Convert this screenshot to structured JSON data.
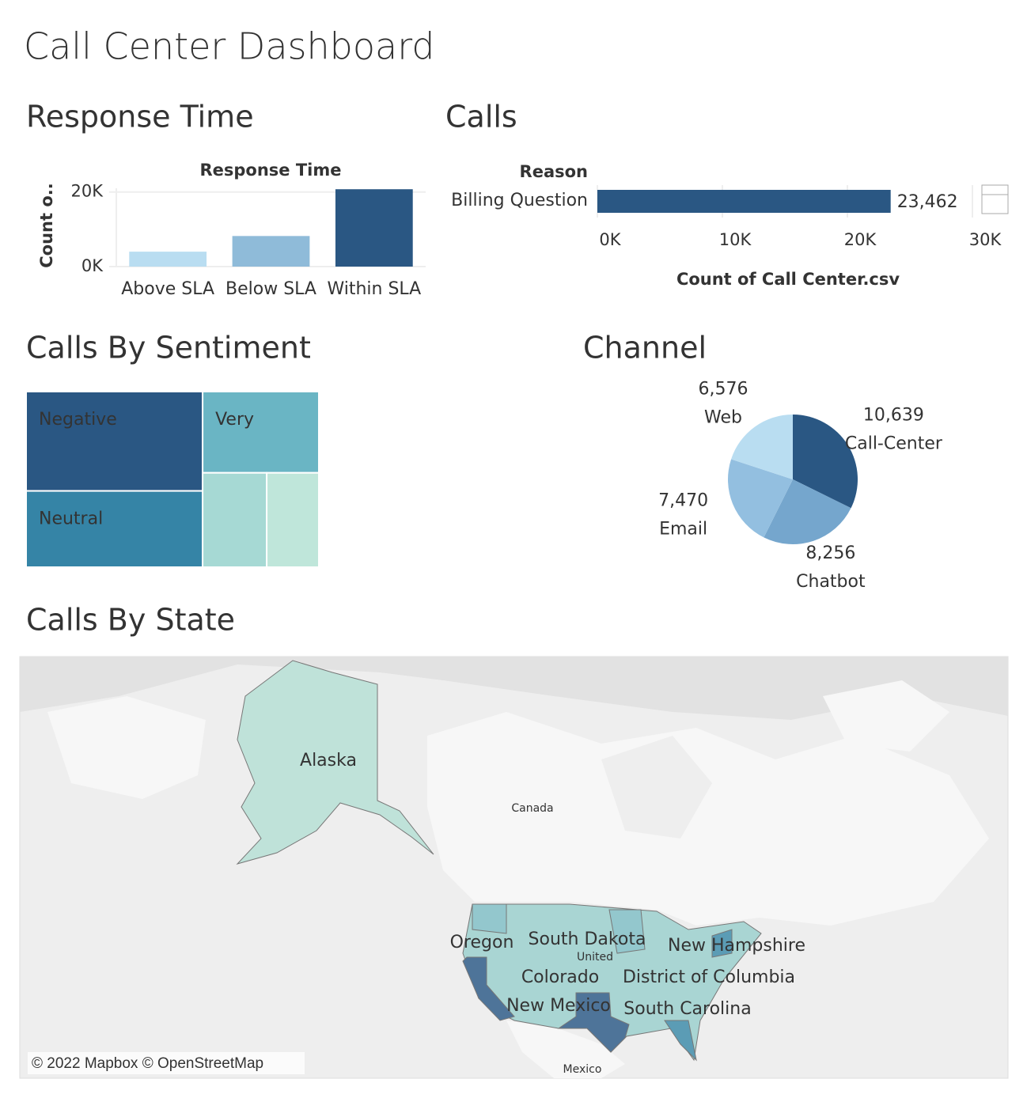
{
  "title": "Call Center Dashboard",
  "chart_data": [
    {
      "type": "bar",
      "title": "Response Time",
      "subtitle": "Response Time",
      "y_label": "Count o..",
      "categories": [
        "Above SLA",
        "Below SLA",
        "Within SLA"
      ],
      "values": [
        4000,
        8200,
        20741
      ],
      "colors": [
        "#b9ddf1",
        "#8fbbd9",
        "#2a5783"
      ],
      "ylim": [
        0,
        21000
      ],
      "yticks": [
        {
          "value": 0,
          "label": "0K"
        },
        {
          "value": 20000,
          "label": "20K"
        }
      ],
      "grid": true
    },
    {
      "type": "hbar",
      "title": "Calls",
      "y_label": "Reason",
      "x_label": "Count of Call Center.csv",
      "categories": [
        "Billing Question"
      ],
      "values": [
        23462
      ],
      "value_labels": [
        "23,462"
      ],
      "color": "#2a5783",
      "xlim": [
        0,
        30000
      ],
      "xticks": [
        {
          "value": 0,
          "label": "0K"
        },
        {
          "value": 10000,
          "label": "10K"
        },
        {
          "value": 20000,
          "label": "20K"
        },
        {
          "value": 30000,
          "label": "30K"
        }
      ],
      "grid": true
    },
    {
      "type": "treemap",
      "title": "Calls By Sentiment",
      "categories": [
        "Negative",
        "Neutral",
        "Very",
        null,
        null
      ],
      "values": [
        11233,
        8627,
        6052,
        3876,
        3153
      ],
      "colors": [
        "#2a5783",
        "#3584a6",
        "#6ab5c4",
        "#a6d9d4",
        "#bfe6da"
      ]
    },
    {
      "type": "pie",
      "title": "Channel",
      "categories": [
        "Call-Center",
        "Chatbot",
        "Email",
        "Web"
      ],
      "values": [
        10639,
        8256,
        7470,
        6576
      ],
      "value_labels": [
        "10,639",
        "8,256",
        "7,470",
        "6,576"
      ],
      "colors": [
        "#2a5783",
        "#75a6cd",
        "#93bfe0",
        "#b9ddf1"
      ]
    },
    {
      "type": "map",
      "title": "Calls By State",
      "labels": [
        "Alaska",
        "Oregon",
        "South Dakota",
        "New Hampshire",
        "Colorado",
        "District of Columbia",
        "New Mexico",
        "South Carolina"
      ],
      "background_labels": [
        "Canada",
        "United",
        "Mexico"
      ],
      "attribution": "© 2022 Mapbox © OpenStreetMap"
    }
  ]
}
